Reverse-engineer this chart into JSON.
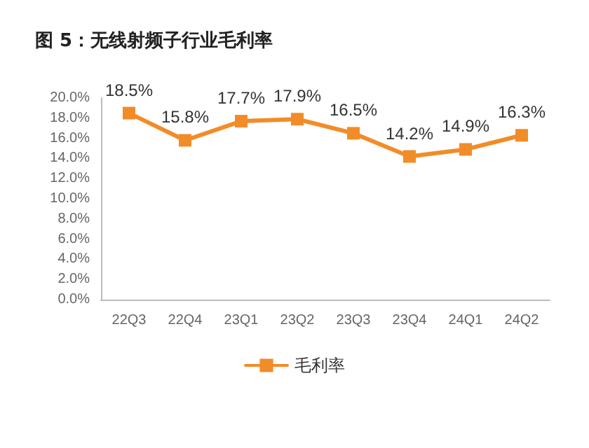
{
  "chart_data": {
    "type": "line",
    "title": "图 5：无线射频子行业毛利率",
    "categories": [
      "22Q3",
      "22Q4",
      "23Q1",
      "23Q2",
      "23Q3",
      "23Q4",
      "24Q1",
      "24Q2"
    ],
    "series": [
      {
        "name": "毛利率",
        "color": "#f28c28",
        "values": [
          18.5,
          15.8,
          17.7,
          17.9,
          16.5,
          14.2,
          14.9,
          16.3
        ],
        "value_labels": [
          "18.5%",
          "15.8%",
          "17.7%",
          "17.9%",
          "16.5%",
          "14.2%",
          "14.9%",
          "16.3%"
        ]
      }
    ],
    "ylim": [
      0,
      20
    ],
    "yticks": [
      {
        "value": 0,
        "label": "0.0%"
      },
      {
        "value": 2,
        "label": "2.0%"
      },
      {
        "value": 4,
        "label": "4.0%"
      },
      {
        "value": 6,
        "label": "6.0%"
      },
      {
        "value": 8,
        "label": "8.0%"
      },
      {
        "value": 10,
        "label": "10.0%"
      },
      {
        "value": 12,
        "label": "12.0%"
      },
      {
        "value": 14,
        "label": "14.0%"
      },
      {
        "value": 16,
        "label": "16.0%"
      },
      {
        "value": 18,
        "label": "18.0%"
      },
      {
        "value": 20,
        "label": "20.0%"
      }
    ],
    "grid": false,
    "legend": "bottom",
    "marker": "square",
    "line_style": "solid"
  }
}
